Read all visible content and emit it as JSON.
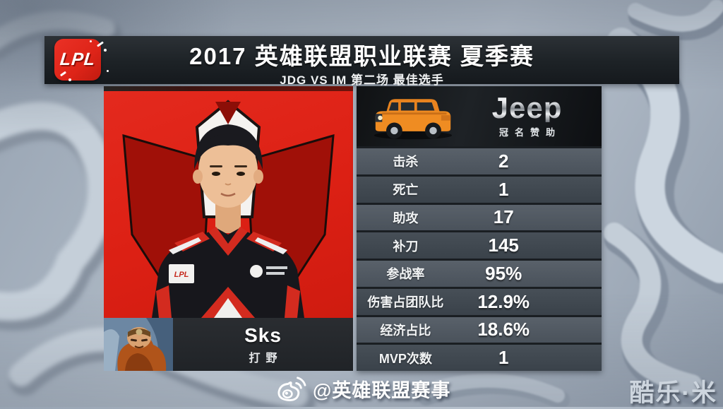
{
  "header": {
    "logo_text": "LPL",
    "title": "2017 英雄联盟职业联赛 夏季赛",
    "subtitle": "JDG VS IM 第二场 最佳选手"
  },
  "player": {
    "name": "Sks",
    "role": "打野"
  },
  "sponsor": {
    "brand": "Jeep",
    "tagline": "冠名赞助"
  },
  "stats": {
    "rows": [
      {
        "label": "击杀",
        "value": "2"
      },
      {
        "label": "死亡",
        "value": "1"
      },
      {
        "label": "助攻",
        "value": "17"
      },
      {
        "label": "补刀",
        "value": "145"
      },
      {
        "label": "参战率",
        "value": "95%"
      },
      {
        "label": "伤害占团队比",
        "value": "12.9%"
      },
      {
        "label": "经济占比",
        "value": "18.6%"
      },
      {
        "label": "MVP次数",
        "value": "1"
      }
    ]
  },
  "footer": {
    "watermark": "@英雄联盟赛事",
    "corner_logo": "酷乐·米"
  },
  "icons": {
    "weibo": "weibo-icon",
    "jeep_car": "jeep-car-icon",
    "lpl_badge": "lpl-logo-badge"
  },
  "colors": {
    "accent_red": "#de2418",
    "emblem_dark_red": "#a4120a",
    "header_bg": "#1d2226",
    "row_light": "#4f575f",
    "row_dark": "#3e464e",
    "jeep_orange": "#e8831f",
    "background_steel": "#aab5c2"
  }
}
